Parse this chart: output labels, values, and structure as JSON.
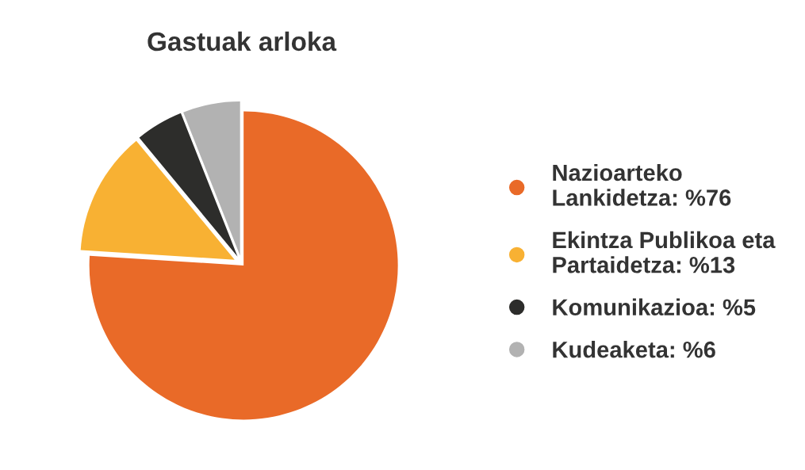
{
  "chart_data": {
    "type": "pie",
    "title": "Gastuak arloka",
    "categories": [
      "Nazioarteko\nLankidetza",
      "Ekintza Publikoa eta\nPartaidetza",
      "Komunikazioa",
      "Kudeaketa"
    ],
    "values": [
      76,
      13,
      5,
      6
    ],
    "value_labels": [
      "%76",
      "%13",
      "%5",
      "%6"
    ],
    "colors": [
      "#e96a28",
      "#f8b133",
      "#2d2d2b",
      "#b2b2b2"
    ],
    "legend": "right"
  }
}
